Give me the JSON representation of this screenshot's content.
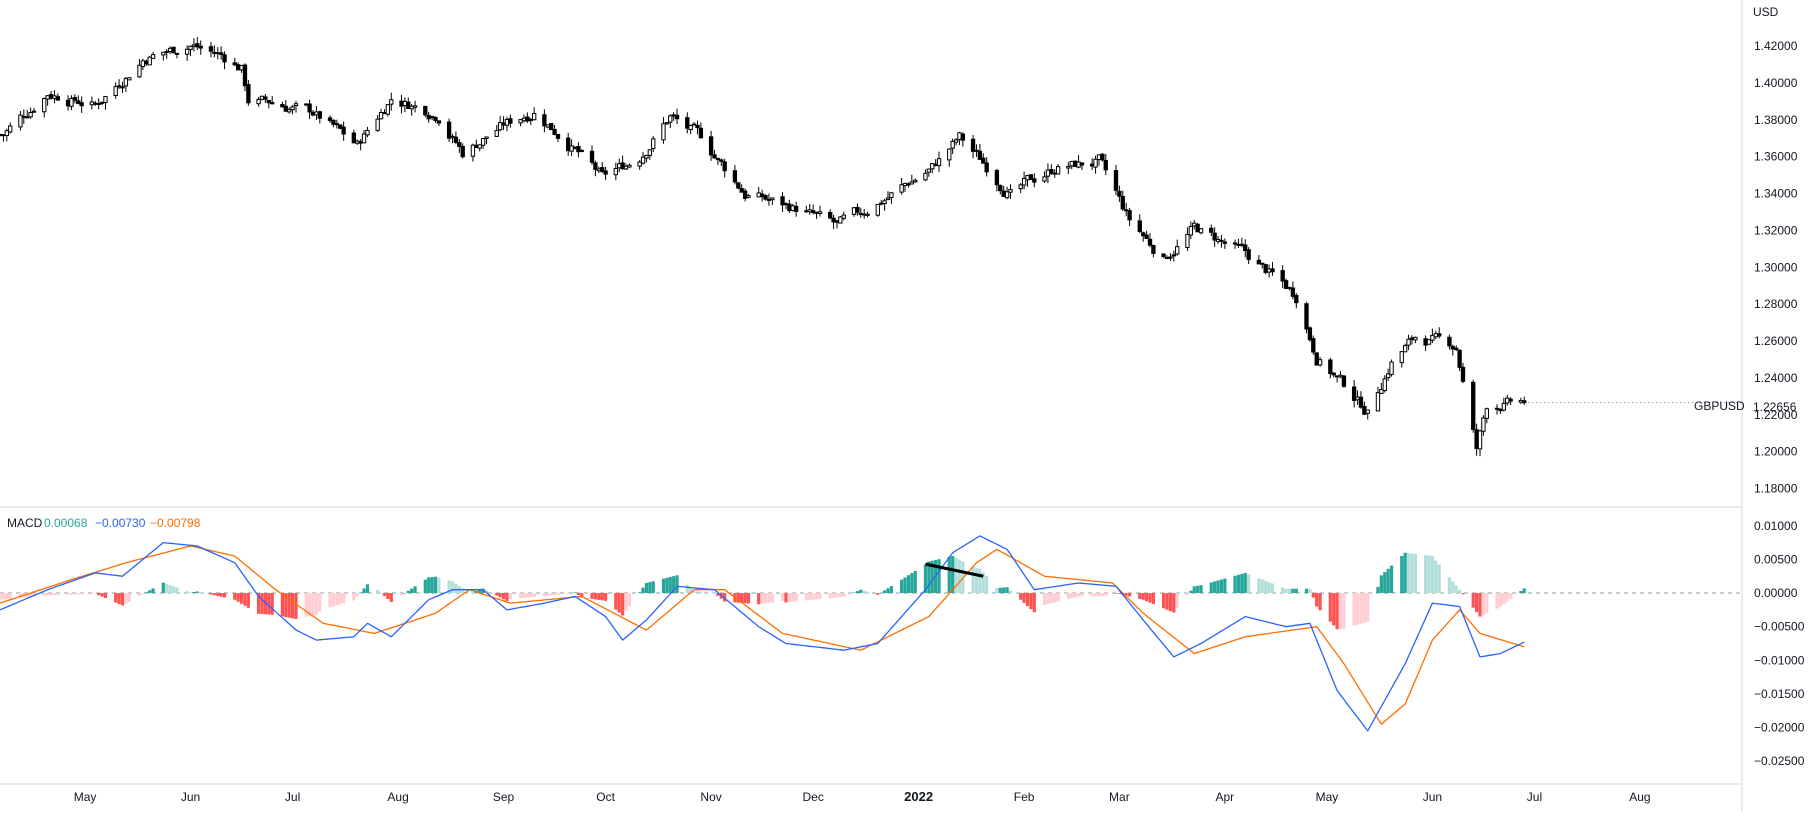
{
  "chart_data": [
    {
      "type": "candlestick",
      "symbol": "GBPUSD",
      "currency": "USD",
      "last_price": "1.22656",
      "last_value": 1.22656,
      "ylim": [
        1.17,
        1.445
      ],
      "y_ticks": [
        "1.42000",
        "1.40000",
        "1.38000",
        "1.36000",
        "1.34000",
        "1.32000",
        "1.30000",
        "1.28000",
        "1.26000",
        "1.24000",
        "1.22000",
        "1.20000",
        "1.18000"
      ],
      "grid": false,
      "x_start_date": "2021-04-06",
      "x_end_date": "2022-08-31",
      "close_path": [
        [
          "2021-04-07",
          1.372
        ],
        [
          "2021-04-20",
          1.395
        ],
        [
          "2021-05-04",
          1.388
        ],
        [
          "2021-05-18",
          1.413
        ],
        [
          "2021-06-01",
          1.421
        ],
        [
          "2021-06-10",
          1.415
        ],
        [
          "2021-06-16",
          1.408
        ],
        [
          "2021-06-18",
          1.391
        ],
        [
          "2021-06-25",
          1.389
        ],
        [
          "2021-07-07",
          1.384
        ],
        [
          "2021-07-20",
          1.366
        ],
        [
          "2021-07-30",
          1.392
        ],
        [
          "2021-08-13",
          1.383
        ],
        [
          "2021-08-20",
          1.362
        ],
        [
          "2021-08-31",
          1.376
        ],
        [
          "2021-09-10",
          1.385
        ],
        [
          "2021-09-20",
          1.368
        ],
        [
          "2021-09-30",
          1.348
        ],
        [
          "2021-10-11",
          1.36
        ],
        [
          "2021-10-20",
          1.382
        ],
        [
          "2021-10-29",
          1.37
        ],
        [
          "2021-11-11",
          1.34
        ],
        [
          "2021-11-26",
          1.332
        ],
        [
          "2021-12-08",
          1.322
        ],
        [
          "2021-12-15",
          1.329
        ],
        [
          "2022-01-05",
          1.354
        ],
        [
          "2022-01-13",
          1.37
        ],
        [
          "2022-01-21",
          1.355
        ],
        [
          "2022-01-28",
          1.34
        ],
        [
          "2022-02-10",
          1.354
        ],
        [
          "2022-02-23",
          1.357
        ],
        [
          "2022-03-04",
          1.325
        ],
        [
          "2022-03-14",
          1.305
        ],
        [
          "2022-03-23",
          1.321
        ],
        [
          "2022-04-07",
          1.307
        ],
        [
          "2022-04-22",
          1.285
        ],
        [
          "2022-04-28",
          1.252
        ],
        [
          "2022-05-13",
          1.222
        ],
        [
          "2022-05-20",
          1.249
        ],
        [
          "2022-05-27",
          1.262
        ],
        [
          "2022-06-08",
          1.257
        ],
        [
          "2022-06-14",
          1.201
        ],
        [
          "2022-06-17",
          1.225
        ],
        [
          "2022-06-28",
          1.2266
        ]
      ]
    },
    {
      "type": "macd",
      "name": "MACD",
      "values_text": [
        "0.00068",
        "−0.00730",
        "−0.00798"
      ],
      "ylim": [
        -0.0284,
        0.0128
      ],
      "y_ticks": [
        "0.01000",
        "0.00500",
        "0.00000",
        "−0.00500",
        "−0.01000",
        "−0.01500",
        "−0.02000",
        "−0.02500"
      ],
      "macd_path": [
        [
          "2021-04-06",
          -0.0025
        ],
        [
          "2021-04-20",
          0.0005
        ],
        [
          "2021-05-04",
          0.003
        ],
        [
          "2021-05-12",
          0.0025
        ],
        [
          "2021-05-24",
          0.0075
        ],
        [
          "2021-06-03",
          0.007
        ],
        [
          "2021-06-14",
          0.0045
        ],
        [
          "2021-06-21",
          -0.0005
        ],
        [
          "2021-07-02",
          -0.0055
        ],
        [
          "2021-07-08",
          -0.007
        ],
        [
          "2021-07-19",
          -0.0065
        ],
        [
          "2021-07-23",
          -0.0045
        ],
        [
          "2021-07-30",
          -0.0065
        ],
        [
          "2021-08-10",
          -0.001
        ],
        [
          "2021-08-17",
          0.0005
        ],
        [
          "2021-08-26",
          0.0005
        ],
        [
          "2021-09-02",
          -0.0025
        ],
        [
          "2021-09-13",
          -0.0015
        ],
        [
          "2021-09-22",
          -0.0005
        ],
        [
          "2021-10-01",
          -0.0035
        ],
        [
          "2021-10-06",
          -0.007
        ],
        [
          "2021-10-13",
          -0.004
        ],
        [
          "2021-10-22",
          0.001
        ],
        [
          "2021-11-02",
          0.0005
        ],
        [
          "2021-11-15",
          -0.005
        ],
        [
          "2021-11-23",
          -0.0075
        ],
        [
          "2021-12-10",
          -0.0085
        ],
        [
          "2021-12-20",
          -0.0075
        ],
        [
          "2022-01-03",
          0.0005
        ],
        [
          "2022-01-11",
          0.006
        ],
        [
          "2022-01-19",
          0.0085
        ],
        [
          "2022-01-27",
          0.0065
        ],
        [
          "2022-02-04",
          0.0005
        ],
        [
          "2022-02-17",
          0.0015
        ],
        [
          "2022-02-28",
          0.001
        ],
        [
          "2022-03-08",
          -0.004
        ],
        [
          "2022-03-17",
          -0.0095
        ],
        [
          "2022-03-25",
          -0.0075
        ],
        [
          "2022-04-07",
          -0.0035
        ],
        [
          "2022-04-19",
          -0.005
        ],
        [
          "2022-04-26",
          -0.0045
        ],
        [
          "2022-05-04",
          -0.0145
        ],
        [
          "2022-05-13",
          -0.0205
        ],
        [
          "2022-05-24",
          -0.0105
        ],
        [
          "2022-06-01",
          -0.0015
        ],
        [
          "2022-06-09",
          -0.002
        ],
        [
          "2022-06-15",
          -0.0095
        ],
        [
          "2022-06-21",
          -0.009
        ],
        [
          "2022-06-28",
          -0.0073
        ]
      ],
      "signal_path": [
        [
          "2021-04-06",
          -0.0015
        ],
        [
          "2021-04-27",
          0.002
        ],
        [
          "2021-05-13",
          0.0045
        ],
        [
          "2021-06-01",
          0.007
        ],
        [
          "2021-06-14",
          0.0055
        ],
        [
          "2021-06-26",
          0.0005
        ],
        [
          "2021-07-10",
          -0.0045
        ],
        [
          "2021-07-25",
          -0.006
        ],
        [
          "2021-08-12",
          -0.003
        ],
        [
          "2021-08-22",
          0.0005
        ],
        [
          "2021-09-03",
          -0.0015
        ],
        [
          "2021-09-24",
          -0.0005
        ],
        [
          "2021-10-13",
          -0.0055
        ],
        [
          "2021-10-27",
          0.0005
        ],
        [
          "2021-11-05",
          0.0005
        ],
        [
          "2021-11-22",
          -0.006
        ],
        [
          "2021-12-15",
          -0.0085
        ],
        [
          "2022-01-04",
          -0.0035
        ],
        [
          "2022-01-18",
          0.0045
        ],
        [
          "2022-01-24",
          0.0065
        ],
        [
          "2022-02-07",
          0.0025
        ],
        [
          "2022-02-27",
          0.0015
        ],
        [
          "2022-03-08",
          -0.003
        ],
        [
          "2022-03-23",
          -0.009
        ],
        [
          "2022-04-07",
          -0.0065
        ],
        [
          "2022-04-28",
          -0.005
        ],
        [
          "2022-05-06",
          -0.0105
        ],
        [
          "2022-05-17",
          -0.0195
        ],
        [
          "2022-05-24",
          -0.0165
        ],
        [
          "2022-06-01",
          -0.007
        ],
        [
          "2022-06-09",
          -0.0025
        ],
        [
          "2022-06-15",
          -0.006
        ],
        [
          "2022-06-28",
          -0.008
        ]
      ],
      "colors": {
        "histogram_pos_strong": "#26a69a",
        "histogram_pos_weak": "#b2dfdb",
        "histogram_neg_strong": "#ff5252",
        "histogram_neg_weak": "#ffcdd2",
        "macd_line": "#2962ff",
        "signal_line": "#ff6d00",
        "histogram_value_text": "#26a69a",
        "macd_value_text": "#2962ff",
        "signal_value_text": "#ff6d00"
      },
      "annotation_line": [
        [
          "2022-01-03",
          0.0043
        ],
        [
          "2022-01-20",
          0.0025
        ]
      ]
    }
  ],
  "x_axis": {
    "ticks": [
      {
        "label": "May",
        "date": "2021-05-01"
      },
      {
        "label": "Jun",
        "date": "2021-06-01"
      },
      {
        "label": "Jul",
        "date": "2021-07-01"
      },
      {
        "label": "Aug",
        "date": "2021-08-01"
      },
      {
        "label": "Sep",
        "date": "2021-09-01"
      },
      {
        "label": "Oct",
        "date": "2021-10-01"
      },
      {
        "label": "Nov",
        "date": "2021-11-01"
      },
      {
        "label": "Dec",
        "date": "2021-12-01"
      },
      {
        "label": "2022",
        "date": "2022-01-01",
        "bold": true
      },
      {
        "label": "Feb",
        "date": "2022-02-01"
      },
      {
        "label": "Mar",
        "date": "2022-03-01"
      },
      {
        "label": "Apr",
        "date": "2022-04-01"
      },
      {
        "label": "May",
        "date": "2022-05-01"
      },
      {
        "label": "Jun",
        "date": "2022-06-01"
      },
      {
        "label": "Jul",
        "date": "2022-07-01"
      },
      {
        "label": "Aug",
        "date": "2022-08-01"
      }
    ]
  }
}
